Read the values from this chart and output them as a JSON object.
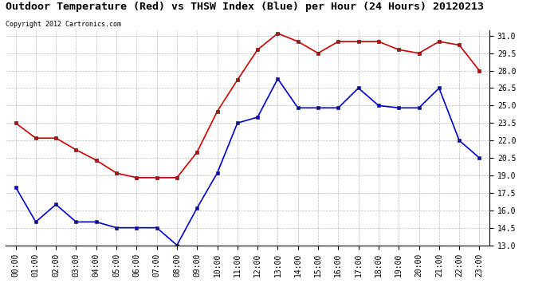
{
  "title": "Outdoor Temperature (Red) vs THSW Index (Blue) per Hour (24 Hours) 20120213",
  "copyright": "Copyright 2012 Cartronics.com",
  "hours": [
    "00:00",
    "01:00",
    "02:00",
    "03:00",
    "04:00",
    "05:00",
    "06:00",
    "07:00",
    "08:00",
    "09:00",
    "10:00",
    "11:00",
    "12:00",
    "13:00",
    "14:00",
    "15:00",
    "16:00",
    "17:00",
    "18:00",
    "19:00",
    "20:00",
    "21:00",
    "22:00",
    "23:00"
  ],
  "red_data": [
    23.5,
    22.2,
    22.2,
    21.2,
    20.3,
    19.2,
    18.8,
    18.8,
    18.8,
    21.0,
    24.5,
    27.2,
    29.8,
    31.2,
    30.5,
    29.5,
    30.5,
    30.5,
    30.5,
    29.8,
    29.5,
    30.5,
    30.2,
    28.0
  ],
  "blue_data": [
    18.0,
    15.0,
    16.5,
    15.0,
    15.0,
    14.5,
    14.5,
    14.5,
    13.0,
    16.2,
    19.2,
    23.5,
    24.0,
    27.3,
    24.8,
    24.8,
    24.8,
    26.5,
    25.0,
    24.8,
    24.8,
    26.5,
    22.0,
    20.5
  ],
  "ylim": [
    13.0,
    31.5
  ],
  "yticks": [
    13.0,
    14.5,
    16.0,
    17.5,
    19.0,
    20.5,
    22.0,
    23.5,
    25.0,
    26.5,
    28.0,
    29.5,
    31.0
  ],
  "red_color": "#cc0000",
  "blue_color": "#0000cc",
  "marker": "s",
  "marker_size": 3,
  "bg_color": "#ffffff",
  "grid_color": "#bbbbbb",
  "title_fontsize": 9.5,
  "tick_fontsize": 7,
  "copyright_fontsize": 6
}
